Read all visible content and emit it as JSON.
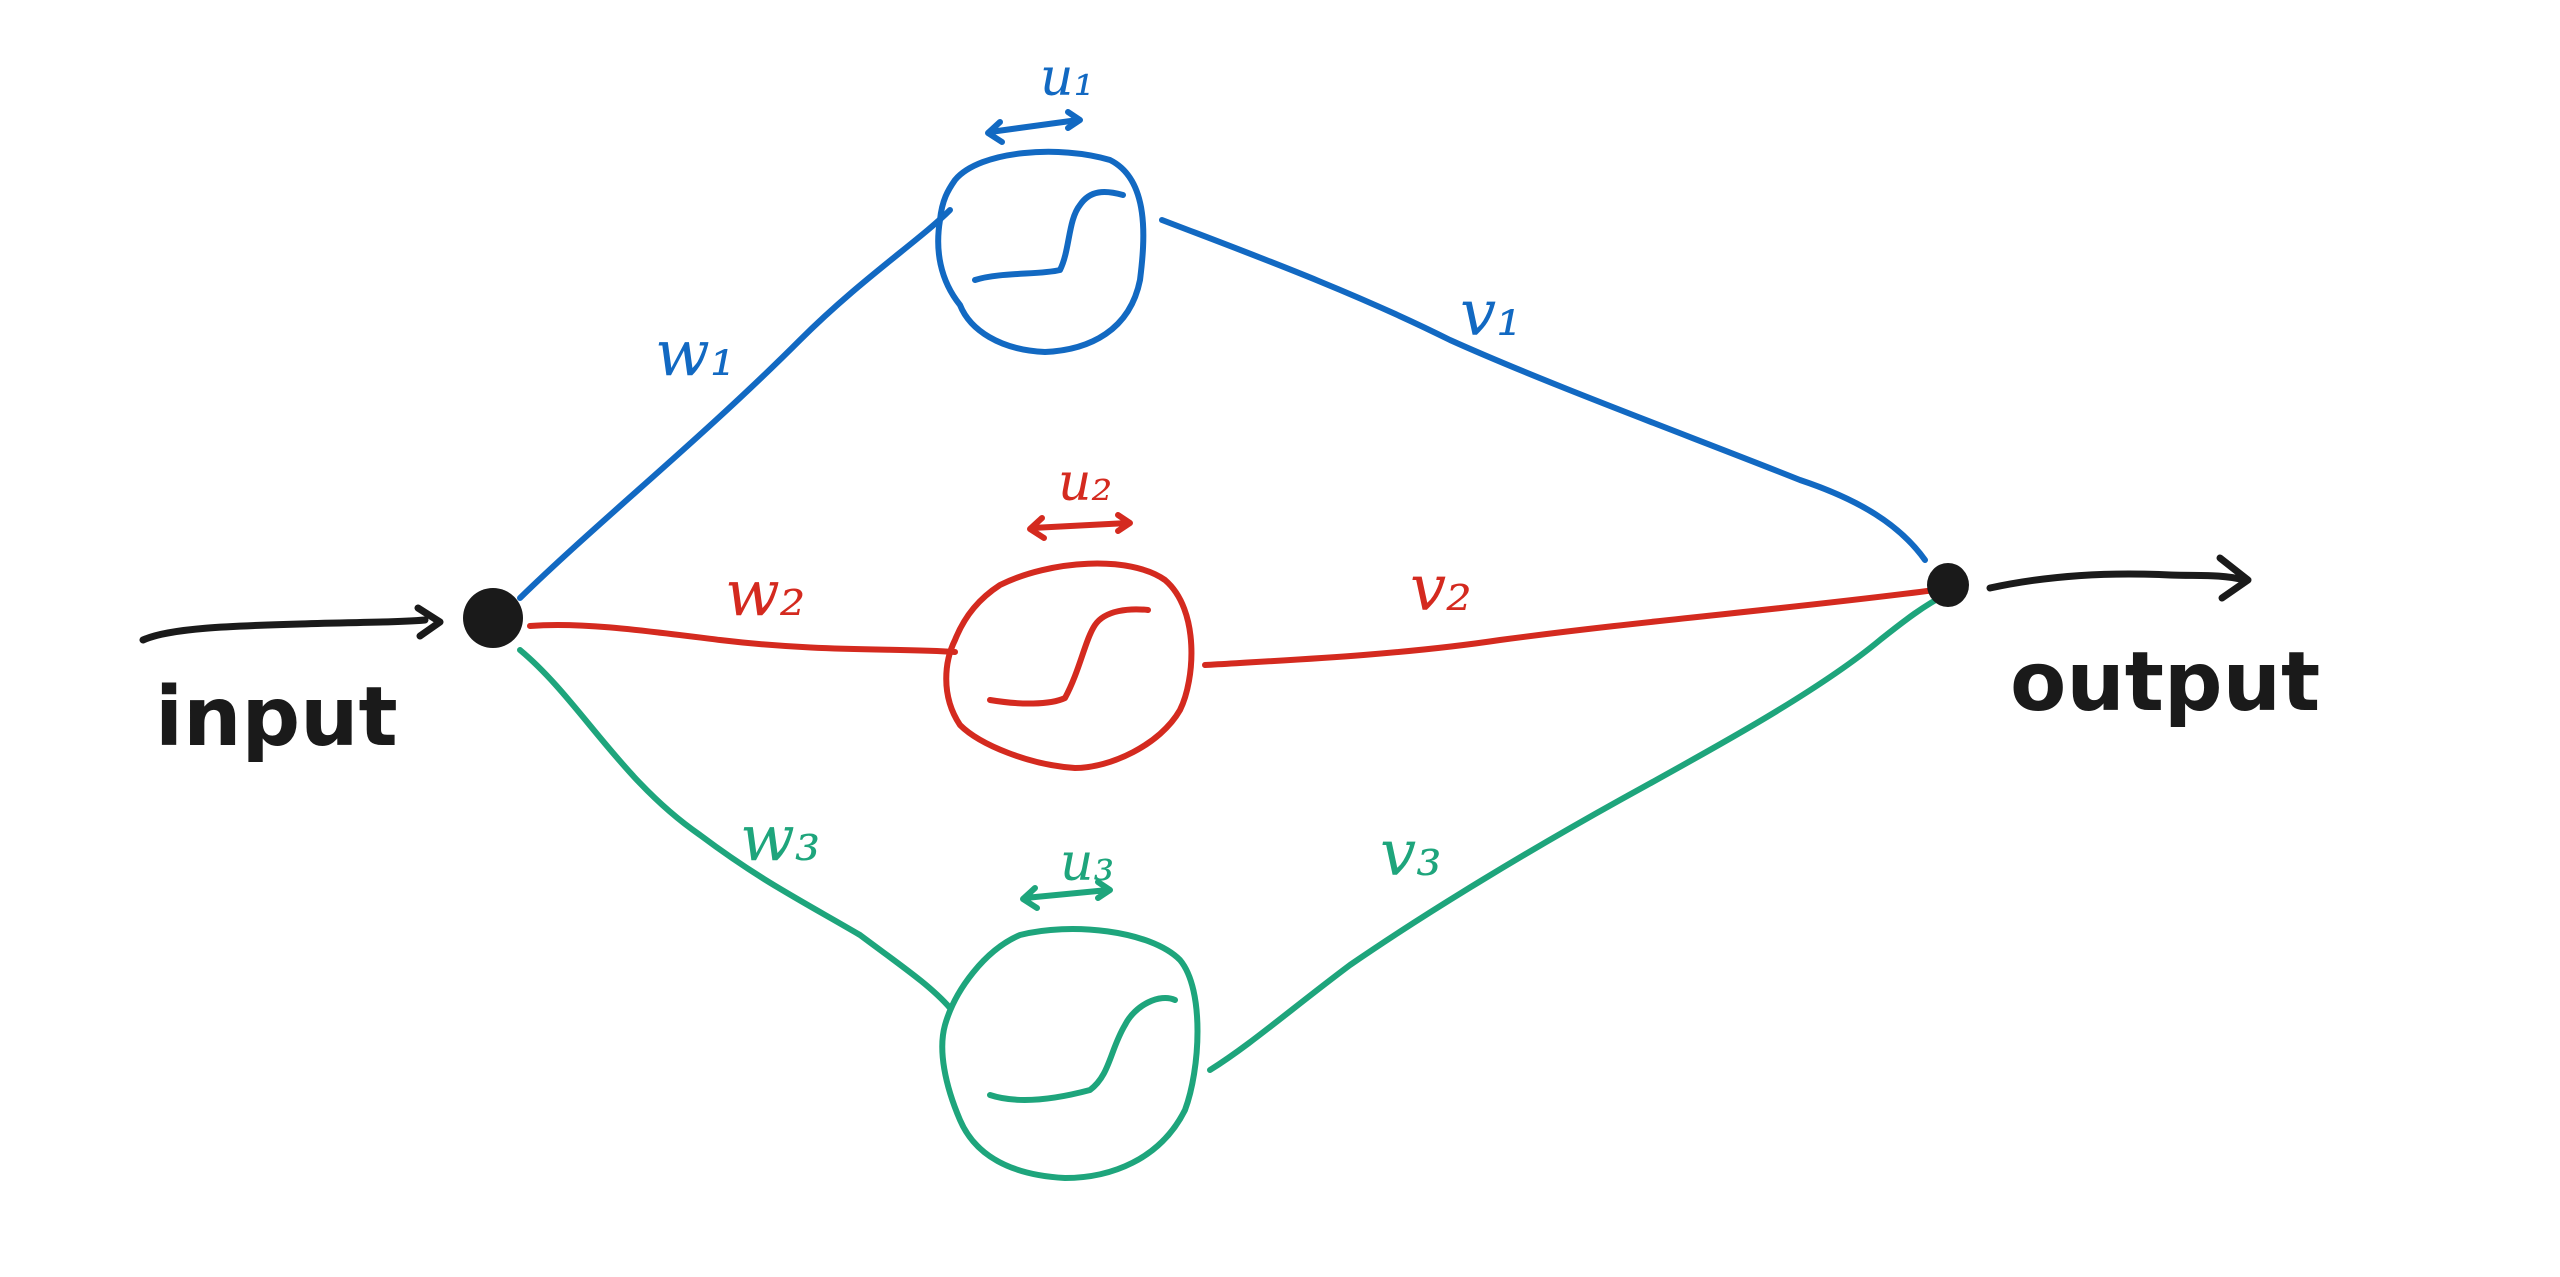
{
  "diagram": {
    "colors": {
      "ink": "#1a1a1a",
      "blue": "#1269c2",
      "red": "#d42a1f",
      "green": "#1ea57c"
    },
    "labels": {
      "input": "input",
      "output": "output"
    },
    "neurons": [
      {
        "id": "1",
        "color_key": "blue",
        "input_weight": "w₁",
        "bias": "u₁",
        "output_weight": "v₁",
        "activation_icon": "sigmoid-icon"
      },
      {
        "id": "2",
        "color_key": "red",
        "input_weight": "w₂",
        "bias": "u₂",
        "output_weight": "v₂",
        "activation_icon": "sigmoid-icon"
      },
      {
        "id": "3",
        "color_key": "green",
        "input_weight": "w₃",
        "bias": "u₃",
        "output_weight": "v₃",
        "activation_icon": "sigmoid-icon"
      }
    ]
  }
}
